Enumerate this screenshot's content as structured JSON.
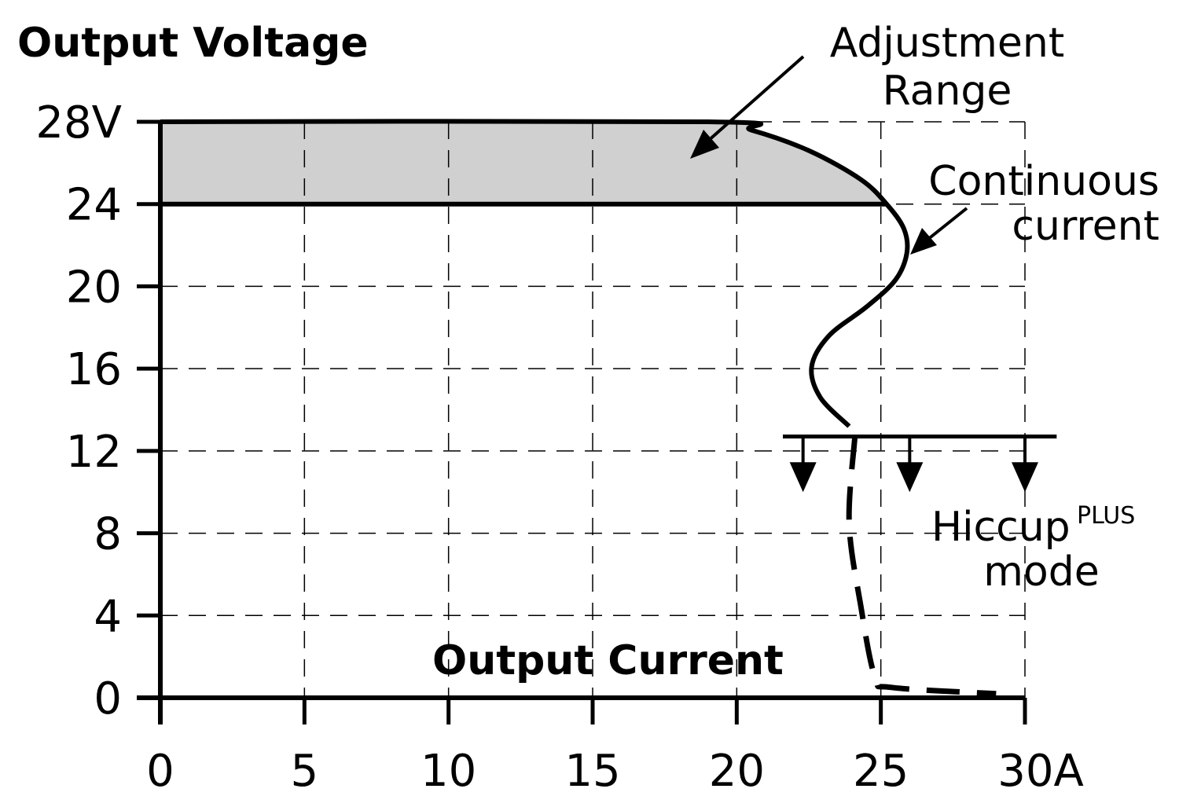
{
  "chart_data": {
    "type": "line",
    "title": "Output Voltage",
    "xlabel": "Output Current",
    "ylabel": "Output Voltage",
    "xlim": [
      0,
      30
    ],
    "ylim": [
      0,
      28
    ],
    "x_ticks": [
      0,
      5,
      10,
      15,
      20,
      25,
      30
    ],
    "x_tick_labels": [
      "0",
      "5",
      "10",
      "15",
      "20",
      "25",
      "30A"
    ],
    "y_ticks": [
      0,
      4,
      8,
      12,
      16,
      20,
      24,
      28
    ],
    "y_tick_labels": [
      "0",
      "4",
      "8",
      "12",
      "16",
      "20",
      "24",
      "28V"
    ],
    "grid": true,
    "adjustment_range": {
      "label_line1": "Adjustment",
      "label_line2": "Range",
      "v_min": 24,
      "v_max": 28,
      "fill": "#d0d0d0"
    },
    "continuous_current_curve": {
      "label_line1": "Continuous",
      "label_line2": "current",
      "points": [
        [
          0,
          28
        ],
        [
          19,
          28
        ],
        [
          20.5,
          27.6
        ],
        [
          22.5,
          26.6
        ],
        [
          24.3,
          25.2
        ],
        [
          25.2,
          24
        ],
        [
          25.8,
          22.8
        ],
        [
          25.9,
          21.6
        ],
        [
          25.5,
          20.3
        ],
        [
          24.5,
          19
        ],
        [
          23.2,
          17.6
        ],
        [
          22.6,
          16.1
        ],
        [
          22.9,
          14.6
        ],
        [
          23.9,
          13.2
        ]
      ]
    },
    "hiccup_mode": {
      "label": "Hiccup",
      "label_sup": "PLUS",
      "label_line2": "mode",
      "level_v": 12.7,
      "x_range": [
        21.6,
        31.1
      ],
      "arrow_x": [
        22.3,
        26,
        30
      ],
      "arrow_to_v": 10,
      "dashed_points": [
        [
          24.1,
          12.7
        ],
        [
          23.9,
          8.5
        ],
        [
          24.3,
          4.5
        ],
        [
          24.8,
          1.0
        ],
        [
          25.4,
          0.5
        ],
        [
          29,
          0.2
        ]
      ]
    },
    "colors": {
      "line": "#000000",
      "grid": "#000000",
      "shade": "#d0d0d0"
    }
  }
}
